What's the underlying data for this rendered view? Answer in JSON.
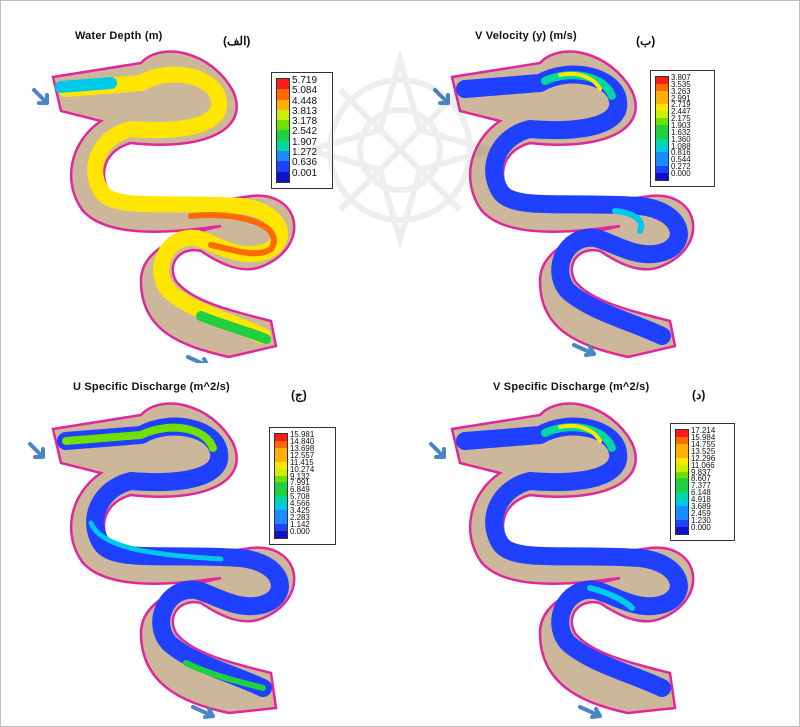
{
  "panels": [
    {
      "title": "Water Depth (m)",
      "label": "(الف)",
      "legend": [
        "5.719",
        "5.084",
        "4.448",
        "3.813",
        "3.178",
        "2.542",
        "1.907",
        "1.272",
        "0.636",
        "0.001"
      ]
    },
    {
      "title": "V Velocity (y) (m/s)",
      "label": "(ب)",
      "legend": [
        "3.807",
        "3.535",
        "3.263",
        "2.991",
        "2.719",
        "2.447",
        "2.175",
        "1.903",
        "1.632",
        "1.360",
        "1.088",
        "0.816",
        "0.544",
        "0.272",
        "0.000"
      ]
    },
    {
      "title": "U Specific Discharge (m^2/s)",
      "label": "(ج)",
      "legend": [
        "15.981",
        "14.840",
        "13.698",
        "12.557",
        "11.415",
        "10.274",
        "9.132",
        "7.991",
        "6.849",
        "5.708",
        "4.566",
        "3.425",
        "2.283",
        "1.142",
        "0.000"
      ]
    },
    {
      "title": "V Specific Discharge (m^2/s)",
      "label": "(د)",
      "legend": [
        "17.214",
        "15.984",
        "14.755",
        "13.525",
        "12.296",
        "11.066",
        "9.837",
        "8.607",
        "7.377",
        "6.148",
        "4.918",
        "3.689",
        "2.459",
        "1.230",
        "0.000"
      ]
    }
  ],
  "colors": {
    "frame": "#bdbdbd",
    "bank": "#cdb79a",
    "outline": "#e0279b",
    "flow_arrow": "#4a86c5",
    "scale": [
      "#ff1a1a",
      "#ff6a00",
      "#ffb000",
      "#ffe600",
      "#c8f000",
      "#6fe000",
      "#20d040",
      "#00d8a0",
      "#00c8e8",
      "#1a8cff",
      "#2040ff",
      "#1010c8"
    ]
  },
  "icons": [
    "flow-direction-arrow-icon",
    "watermark-rosette-icon"
  ]
}
